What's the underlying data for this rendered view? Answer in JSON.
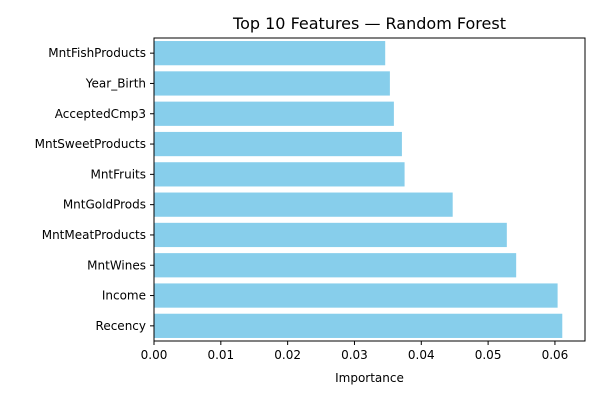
{
  "chart_data": {
    "type": "bar",
    "orientation": "horizontal",
    "title": "Top 10 Features — Random Forest",
    "xlabel": "Importance",
    "ylabel": "",
    "categories": [
      "Recency",
      "Income",
      "MntWines",
      "MntMeatProducts",
      "MntGoldProds",
      "MntFruits",
      "MntSweetProducts",
      "AcceptedCmp3",
      "Year_Birth",
      "MntFishProducts"
    ],
    "values": [
      0.0611,
      0.0604,
      0.0542,
      0.0528,
      0.0447,
      0.0375,
      0.0371,
      0.0359,
      0.0353,
      0.0346
    ],
    "xlim": [
      0,
      0.0645
    ],
    "xticks": [
      0.0,
      0.01,
      0.02,
      0.03,
      0.04,
      0.05,
      0.06
    ],
    "xtick_labels": [
      "0.00",
      "0.01",
      "0.02",
      "0.03",
      "0.04",
      "0.05",
      "0.06"
    ],
    "bar_color": "#87ceeb",
    "grid": false,
    "legend": "none"
  }
}
